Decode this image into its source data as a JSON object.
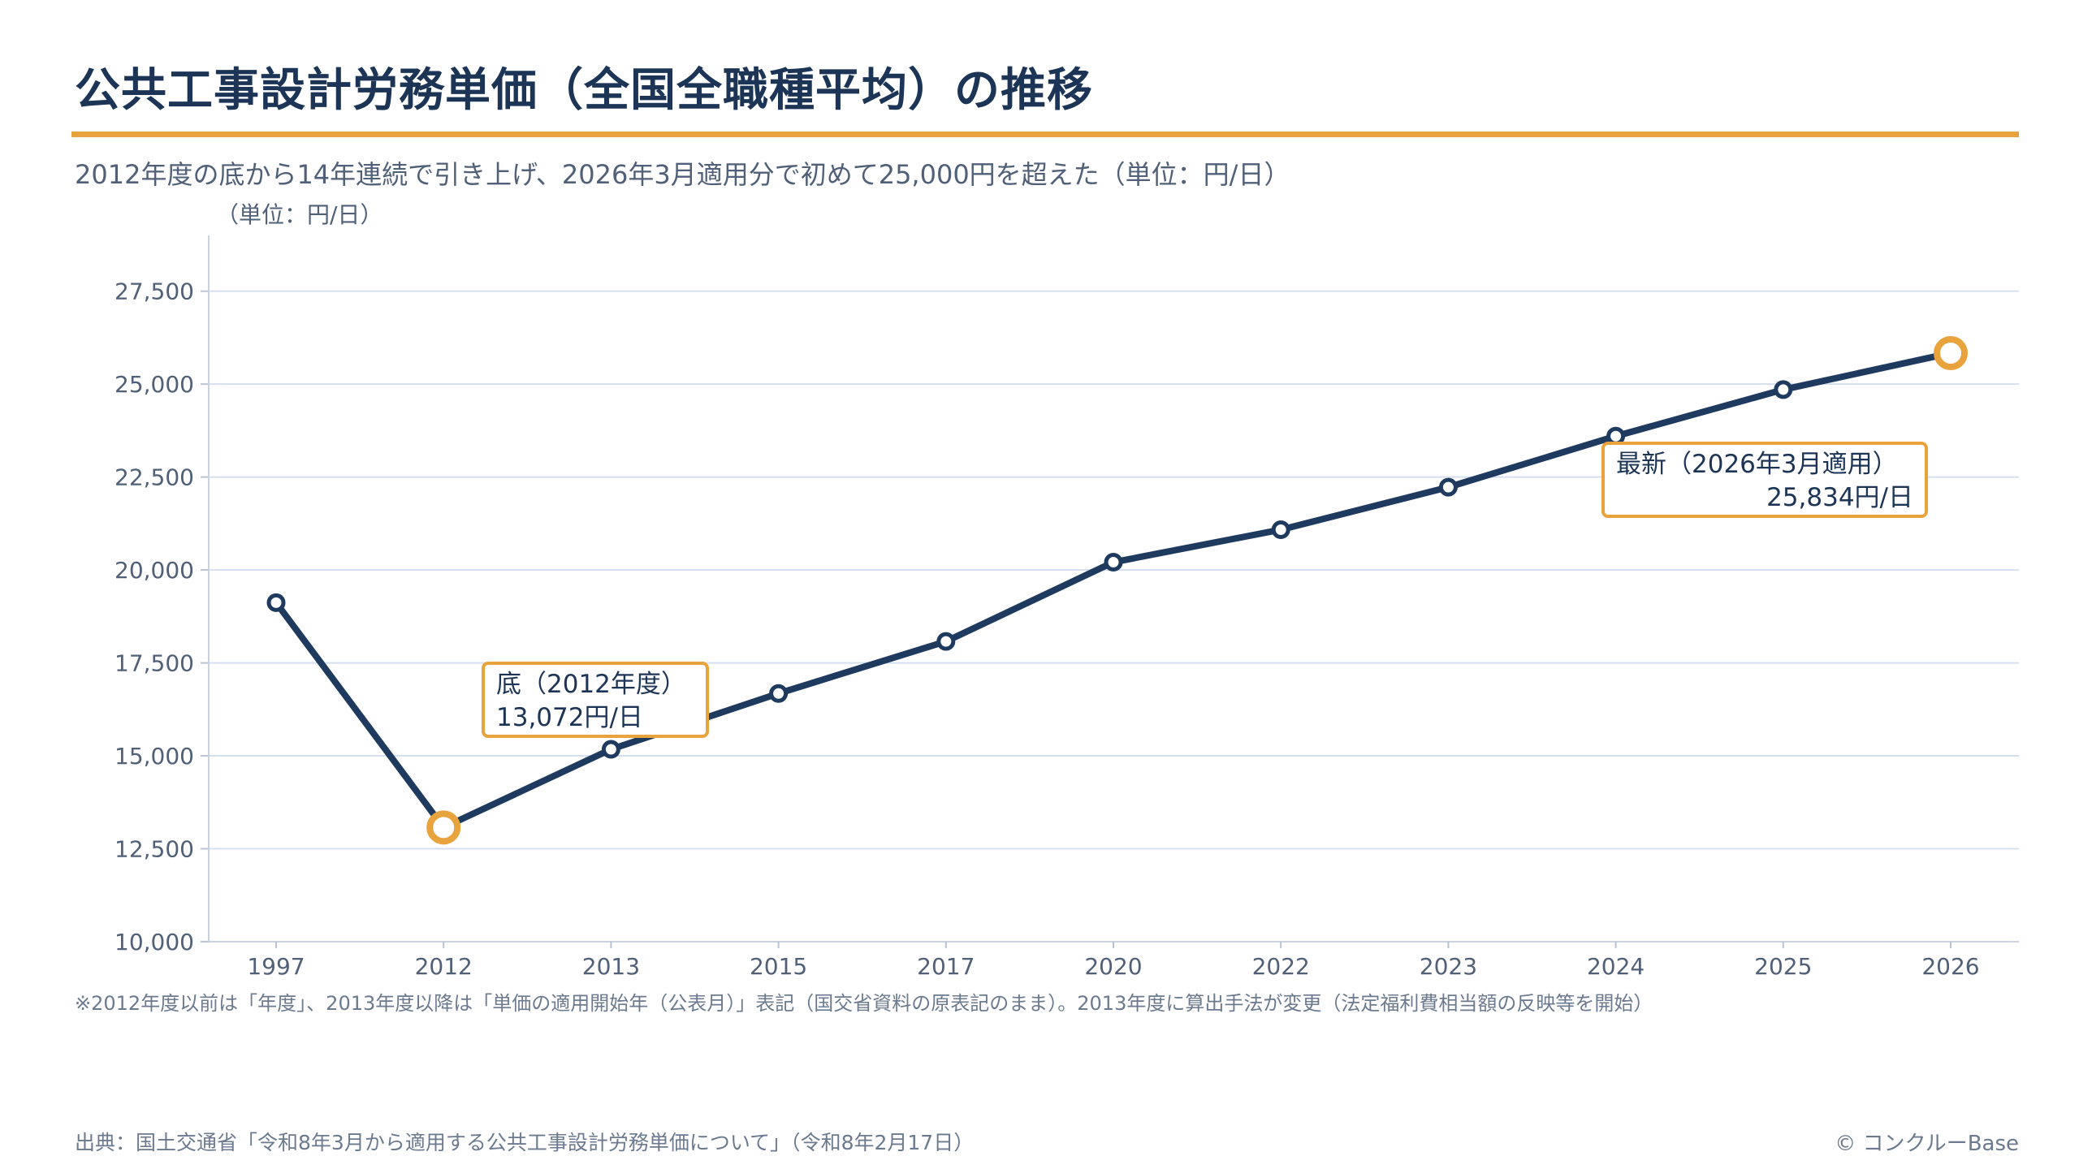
{
  "header": {
    "title": "公共工事設計労務単価（全国全職種平均）の推移",
    "subtitle": "2012年度の底から14年連続で引き上げ、2026年3月適用分で初めて25,000円を超えた（単位：円/日）",
    "unit_label": "（単位：円/日）"
  },
  "colors": {
    "accent": "#e8a33d",
    "line": "#1f3a5f",
    "grid": "#d5dff0",
    "axis_text": "#4f6078"
  },
  "chart_data": {
    "type": "line",
    "categories": [
      "1997",
      "2012",
      "2013",
      "2015",
      "2017",
      "2020",
      "2022",
      "2023",
      "2024",
      "2025",
      "2026"
    ],
    "values": [
      19121,
      13072,
      15175,
      16678,
      18078,
      20209,
      21084,
      22227,
      23600,
      24852,
      25834
    ],
    "ylim": [
      10000,
      29000
    ],
    "yticks": [
      10000,
      12500,
      15000,
      17500,
      20000,
      22500,
      25000,
      27500
    ],
    "ytick_labels": [
      "10,000",
      "12,500",
      "15,000",
      "17,500",
      "20,000",
      "22,500",
      "25,000",
      "27,500"
    ],
    "grid": "horizontal",
    "highlight_points": [
      1,
      10
    ],
    "annotations": [
      {
        "category": "2012",
        "label": "底（2012年度）",
        "value_text": "13,072円/日"
      },
      {
        "category": "2026",
        "label": "最新（2026年3月適用）",
        "value_text": "25,834円/日"
      }
    ]
  },
  "footer": {
    "note": "※2012年度以前は「年度」、2013年度以降は「単価の適用開始年（公表月）」表記（国交省資料の原表記のまま）。2013年度に算出手法が変更（法定福利費相当額の反映等を開始）",
    "source": "出典：国土交通省「令和8年3月から適用する公共工事設計労務単価について」（令和8年2月17日）",
    "copyright": "© コンクルーBase"
  }
}
